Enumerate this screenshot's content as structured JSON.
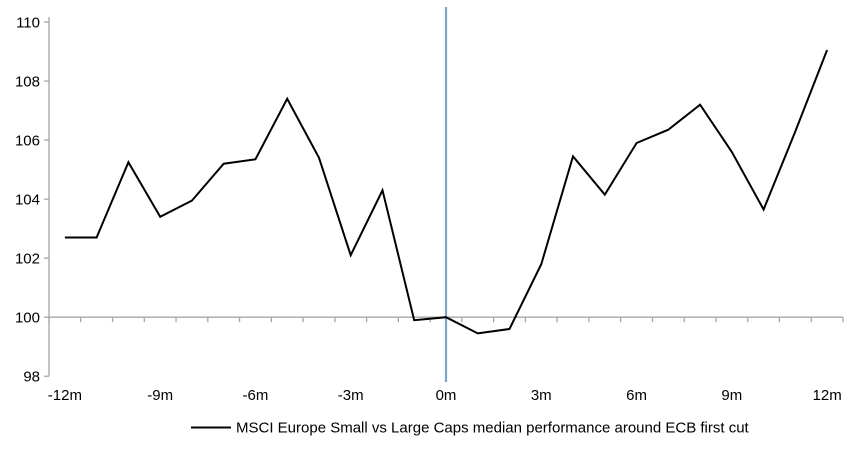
{
  "chart_data": {
    "type": "line",
    "title": "",
    "xlabel": "",
    "ylabel": "",
    "x": [
      -12,
      -11,
      -10,
      -9,
      -8,
      -7,
      -6,
      -5,
      -4,
      -3,
      -2,
      -1,
      0,
      1,
      2,
      3,
      4,
      5,
      6,
      7,
      8,
      9,
      10,
      11,
      12
    ],
    "series": [
      {
        "name": "MSCI Europe Small vs Large Caps median performance around ECB first cut",
        "color": "#000000",
        "values": [
          102.7,
          102.7,
          105.25,
          103.4,
          103.95,
          105.2,
          105.35,
          107.4,
          105.4,
          102.1,
          104.3,
          99.9,
          100.0,
          99.45,
          99.6,
          101.8,
          105.45,
          104.15,
          105.9,
          106.35,
          107.2,
          105.6,
          103.65,
          106.3,
          109.05
        ]
      }
    ],
    "x_tick_labels": [
      "-12m",
      "-9m",
      "-6m",
      "-3m",
      "0m",
      "3m",
      "6m",
      "9m",
      "12m"
    ],
    "x_tick_months": [
      -12,
      -9,
      -6,
      -3,
      0,
      3,
      6,
      9,
      12
    ],
    "y_ticks": [
      98,
      100,
      102,
      104,
      106,
      108,
      110
    ],
    "ylim": [
      98,
      110
    ],
    "baseline_value": 100,
    "event_line": {
      "x": 0,
      "color": "#7CA3CD"
    },
    "axis_color": "#A6A6A6",
    "grid": "single horizontal gridline at 100 with minor month ticks",
    "legend_position": "bottom-center"
  }
}
